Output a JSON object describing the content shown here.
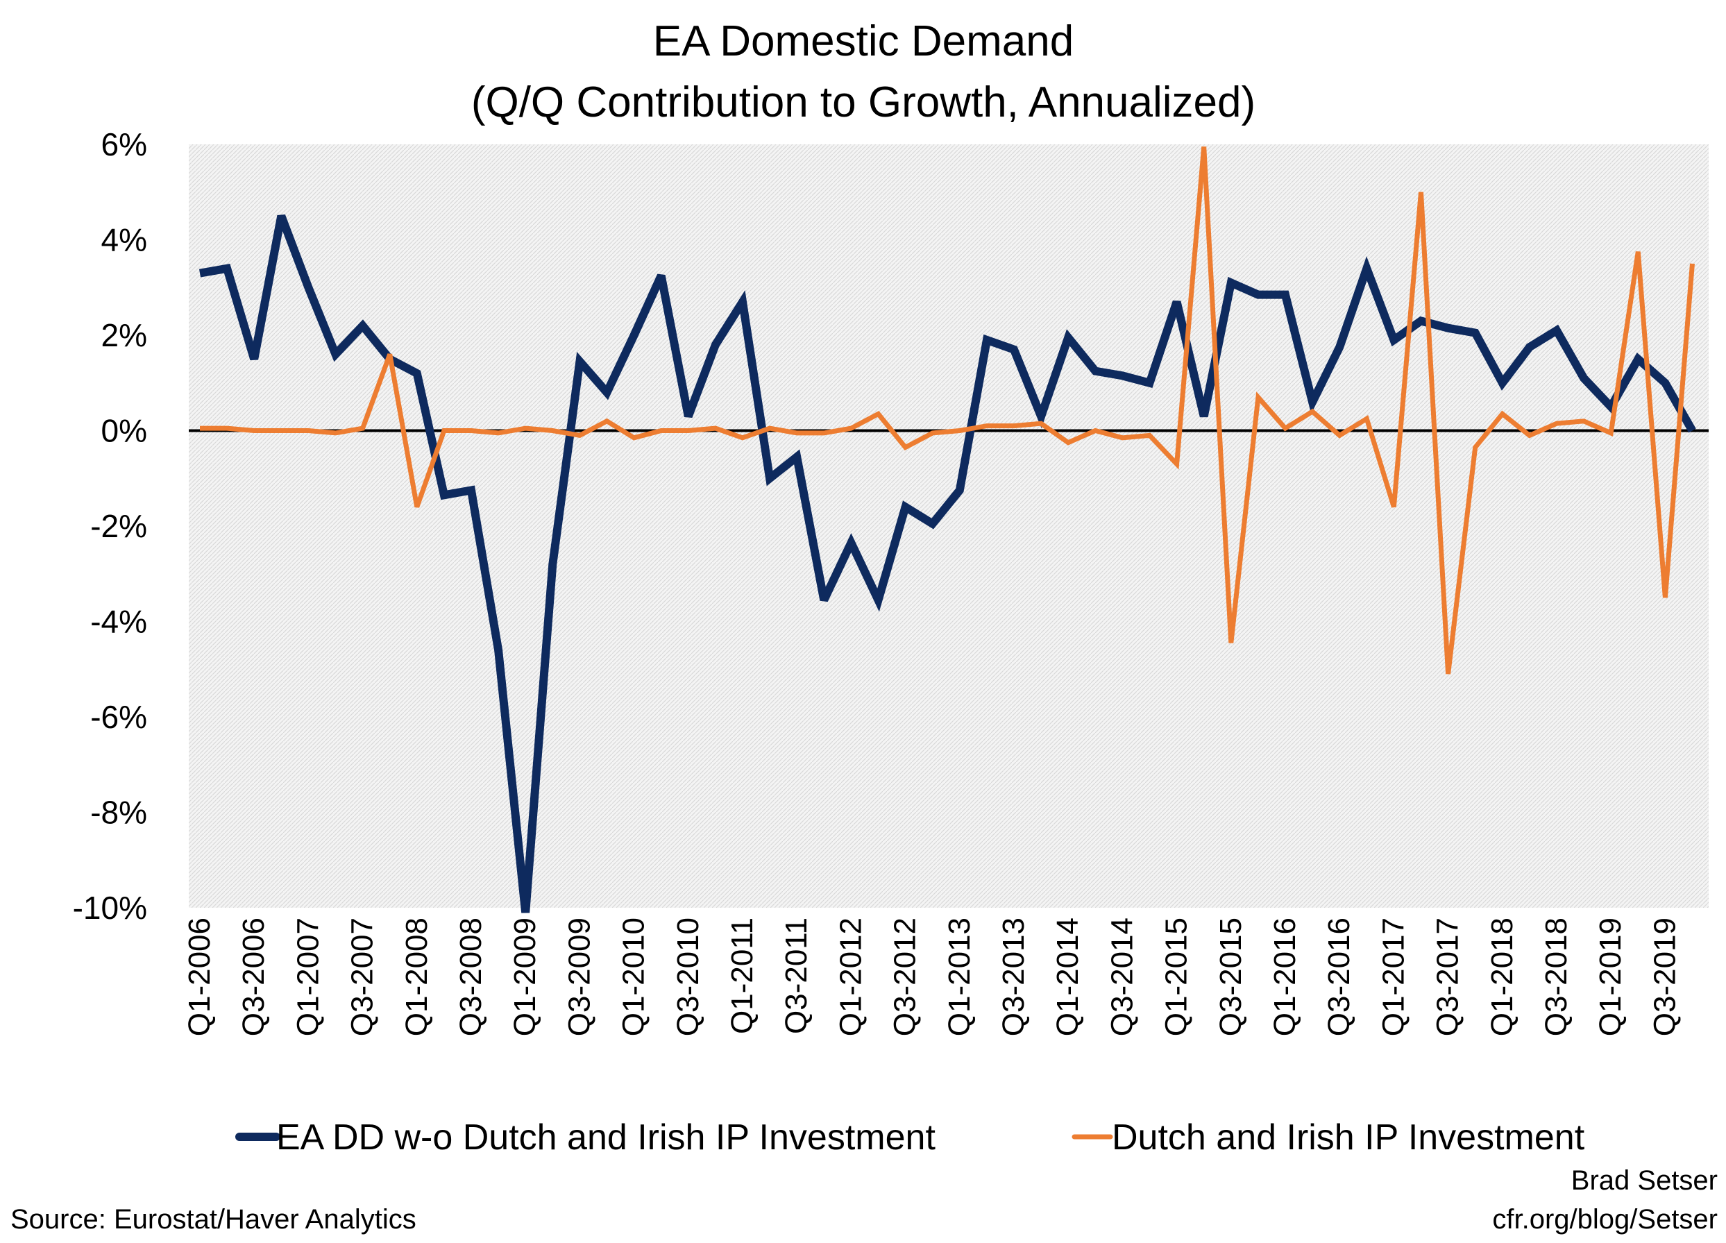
{
  "chart_data": {
    "type": "line",
    "title": "EA Domestic Demand",
    "subtitle": "(Q/Q Contribution to Growth, Annualized)",
    "xlabel": "",
    "ylabel": "",
    "ylim": [
      -10,
      6
    ],
    "yticks": [
      6,
      4,
      2,
      0,
      -2,
      -4,
      -6,
      -8,
      -10
    ],
    "ytick_labels": [
      "6%",
      "4%",
      "2%",
      "0%",
      "-2%",
      "-4%",
      "-6%",
      "-8%",
      "-10%"
    ],
    "grid": false,
    "legend_position": "bottom",
    "x": [
      "Q1-2006",
      "Q2-2006",
      "Q3-2006",
      "Q4-2006",
      "Q1-2007",
      "Q2-2007",
      "Q3-2007",
      "Q4-2007",
      "Q1-2008",
      "Q2-2008",
      "Q3-2008",
      "Q4-2008",
      "Q1-2009",
      "Q2-2009",
      "Q3-2009",
      "Q4-2009",
      "Q1-2010",
      "Q2-2010",
      "Q3-2010",
      "Q4-2010",
      "Q1-2011",
      "Q2-2011",
      "Q3-2011",
      "Q4-2011",
      "Q1-2012",
      "Q2-2012",
      "Q3-2012",
      "Q4-2012",
      "Q1-2013",
      "Q2-2013",
      "Q3-2013",
      "Q4-2013",
      "Q1-2014",
      "Q2-2014",
      "Q3-2014",
      "Q4-2014",
      "Q1-2015",
      "Q2-2015",
      "Q3-2015",
      "Q4-2015",
      "Q1-2016",
      "Q2-2016",
      "Q3-2016",
      "Q4-2016",
      "Q1-2017",
      "Q2-2017",
      "Q3-2017",
      "Q4-2017",
      "Q1-2018",
      "Q2-2018",
      "Q3-2018",
      "Q4-2018",
      "Q1-2019",
      "Q2-2019",
      "Q3-2019",
      "Q4-2019"
    ],
    "xtick_labels": [
      "Q1-2006",
      "Q3-2006",
      "Q1-2007",
      "Q3-2007",
      "Q1-2008",
      "Q3-2008",
      "Q1-2009",
      "Q3-2009",
      "Q1-2010",
      "Q3-2010",
      "Q1-2011",
      "Q3-2011",
      "Q1-2012",
      "Q3-2012",
      "Q1-2013",
      "Q3-2013",
      "Q1-2014",
      "Q3-2014",
      "Q1-2015",
      "Q3-2015",
      "Q1-2016",
      "Q3-2016",
      "Q1-2017",
      "Q3-2017",
      "Q1-2018",
      "Q3-2018",
      "Q1-2019",
      "Q3-2019"
    ],
    "series": [
      {
        "name": "EA DD w-o Dutch and Irish IP Investment",
        "color": "#0e2a5e",
        "values": [
          3.3,
          3.4,
          1.5,
          4.5,
          3.0,
          1.6,
          2.2,
          1.5,
          1.2,
          -1.35,
          -1.25,
          -4.6,
          -10.1,
          -2.8,
          1.45,
          0.8,
          2.0,
          3.25,
          0.3,
          1.8,
          2.7,
          -1.0,
          -0.55,
          -3.55,
          -2.35,
          -3.55,
          -1.6,
          -1.95,
          -1.25,
          1.9,
          1.7,
          0.3,
          1.95,
          1.25,
          1.15,
          1.0,
          2.7,
          0.3,
          3.1,
          2.85,
          2.85,
          0.6,
          1.75,
          3.4,
          1.9,
          2.3,
          2.15,
          2.05,
          1.0,
          1.75,
          2.1,
          1.1,
          0.5,
          1.5,
          1.0,
          0.0
        ]
      },
      {
        "name": "Dutch and Irish IP Investment",
        "color": "#ed7d31",
        "values": [
          0.05,
          0.05,
          0.0,
          0.0,
          0.0,
          -0.05,
          0.05,
          1.6,
          -1.6,
          0.0,
          0.0,
          -0.05,
          0.05,
          0.0,
          -0.1,
          0.2,
          -0.15,
          0.0,
          0.0,
          0.05,
          -0.15,
          0.05,
          -0.05,
          -0.05,
          0.05,
          0.35,
          -0.35,
          -0.05,
          0.0,
          0.1,
          0.1,
          0.15,
          -0.25,
          0.0,
          -0.15,
          -0.1,
          -0.7,
          5.95,
          -4.45,
          0.7,
          0.05,
          0.4,
          -0.1,
          0.25,
          -1.6,
          5.0,
          -5.1,
          -0.35,
          0.35,
          -0.1,
          0.15,
          0.2,
          -0.05,
          3.75,
          -3.5,
          3.5
        ]
      }
    ]
  },
  "footer": {
    "source": "Source: Eurostat/Haver Analytics",
    "author": "Brad Setser",
    "url": "cfr.org/blog/Setser"
  }
}
